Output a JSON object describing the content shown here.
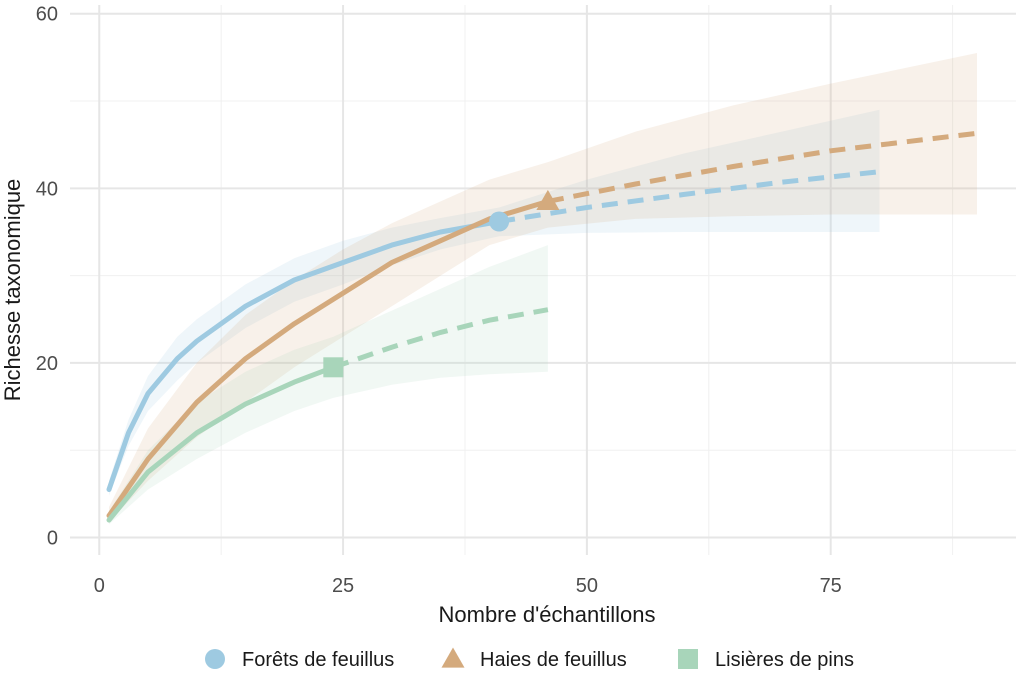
{
  "chart_data": {
    "type": "line",
    "title": "",
    "xlabel": "Nombre d'échantillons",
    "ylabel": "Richesse taxonomique",
    "xlim": [
      -3,
      94
    ],
    "ylim": [
      -2,
      61
    ],
    "xticks": [
      0,
      25,
      50,
      75
    ],
    "xtick_labels": [
      "0",
      "25",
      "50",
      "75"
    ],
    "yticks": [
      0,
      20,
      40,
      60
    ],
    "ytick_labels": [
      "0",
      "20",
      "40",
      "60"
    ],
    "grid": true,
    "legend_position": "bottom",
    "series": [
      {
        "name": "Forêts de feuillus",
        "color": "#9ecae1",
        "marker": "circle",
        "observed_n": 41,
        "observed_value": 36.2,
        "interpolated": [
          [
            1,
            5.5
          ],
          [
            3,
            12
          ],
          [
            5,
            16.5
          ],
          [
            8,
            20.5
          ],
          [
            10,
            22.5
          ],
          [
            15,
            26.5
          ],
          [
            20,
            29.5
          ],
          [
            25,
            31.5
          ],
          [
            30,
            33.5
          ],
          [
            35,
            35
          ],
          [
            41,
            36.2
          ]
        ],
        "extrapolated": [
          [
            41,
            36.2
          ],
          [
            50,
            37.8
          ],
          [
            60,
            39.3
          ],
          [
            70,
            40.7
          ],
          [
            80,
            41.9
          ]
        ],
        "ci_upper": [
          [
            1,
            6.5
          ],
          [
            3,
            13.5
          ],
          [
            5,
            18.5
          ],
          [
            8,
            23
          ],
          [
            10,
            25
          ],
          [
            15,
            29
          ],
          [
            20,
            32
          ],
          [
            25,
            34
          ],
          [
            30,
            35.5
          ],
          [
            35,
            36.6
          ],
          [
            41,
            37.8
          ],
          [
            50,
            41
          ],
          [
            60,
            44
          ],
          [
            70,
            46.5
          ],
          [
            80,
            49
          ]
        ],
        "ci_lower": [
          [
            1,
            4.8
          ],
          [
            3,
            10.5
          ],
          [
            5,
            14.5
          ],
          [
            8,
            18
          ],
          [
            10,
            20
          ],
          [
            15,
            24
          ],
          [
            20,
            27
          ],
          [
            25,
            29
          ],
          [
            30,
            31.2
          ],
          [
            35,
            33
          ],
          [
            41,
            34.5
          ],
          [
            50,
            34.9
          ],
          [
            60,
            35
          ],
          [
            70,
            35
          ],
          [
            80,
            35
          ]
        ]
      },
      {
        "name": "Haies de feuillus",
        "color": "#d4aa7d",
        "marker": "triangle",
        "observed_n": 46,
        "observed_value": 38.5,
        "interpolated": [
          [
            1,
            2.5
          ],
          [
            5,
            9
          ],
          [
            10,
            15.5
          ],
          [
            15,
            20.5
          ],
          [
            20,
            24.5
          ],
          [
            25,
            28
          ],
          [
            30,
            31.5
          ],
          [
            35,
            34
          ],
          [
            40,
            36.5
          ],
          [
            46,
            38.5
          ]
        ],
        "extrapolated": [
          [
            46,
            38.5
          ],
          [
            55,
            40.5
          ],
          [
            65,
            42.5
          ],
          [
            75,
            44.3
          ],
          [
            90,
            46.3
          ]
        ],
        "ci_upper": [
          [
            1,
            3.5
          ],
          [
            5,
            12.5
          ],
          [
            10,
            20
          ],
          [
            15,
            25.5
          ],
          [
            20,
            29.5
          ],
          [
            25,
            33
          ],
          [
            30,
            36
          ],
          [
            35,
            38.5
          ],
          [
            40,
            41
          ],
          [
            46,
            43
          ],
          [
            55,
            46.5
          ],
          [
            65,
            49.5
          ],
          [
            75,
            52
          ],
          [
            90,
            55.5
          ]
        ],
        "ci_lower": [
          [
            1,
            1.8
          ],
          [
            5,
            6.5
          ],
          [
            10,
            11.5
          ],
          [
            15,
            15.5
          ],
          [
            20,
            19.5
          ],
          [
            25,
            23
          ],
          [
            30,
            26.5
          ],
          [
            35,
            30
          ],
          [
            40,
            33.5
          ],
          [
            46,
            35.5
          ],
          [
            55,
            36.5
          ],
          [
            65,
            36.8
          ],
          [
            75,
            37
          ],
          [
            90,
            37
          ]
        ]
      },
      {
        "name": "Lisières de pins",
        "color": "#a8d5ba",
        "marker": "square",
        "observed_n": 24,
        "observed_value": 19.5,
        "interpolated": [
          [
            1,
            2
          ],
          [
            5,
            7.5
          ],
          [
            10,
            12
          ],
          [
            15,
            15.3
          ],
          [
            20,
            17.8
          ],
          [
            24,
            19.5
          ]
        ],
        "extrapolated": [
          [
            24,
            19.5
          ],
          [
            30,
            21.8
          ],
          [
            35,
            23.5
          ],
          [
            40,
            24.9
          ],
          [
            46,
            26.1
          ]
        ],
        "ci_upper": [
          [
            1,
            3
          ],
          [
            5,
            10
          ],
          [
            10,
            15.5
          ],
          [
            15,
            19
          ],
          [
            20,
            21.5
          ],
          [
            24,
            23
          ],
          [
            30,
            26
          ],
          [
            35,
            28.5
          ],
          [
            40,
            31
          ],
          [
            46,
            33.5
          ]
        ],
        "ci_lower": [
          [
            1,
            1.5
          ],
          [
            5,
            5.5
          ],
          [
            10,
            9
          ],
          [
            15,
            12
          ],
          [
            20,
            14.5
          ],
          [
            24,
            16
          ],
          [
            30,
            17.5
          ],
          [
            35,
            18.3
          ],
          [
            40,
            18.7
          ],
          [
            46,
            19
          ]
        ]
      }
    ]
  }
}
